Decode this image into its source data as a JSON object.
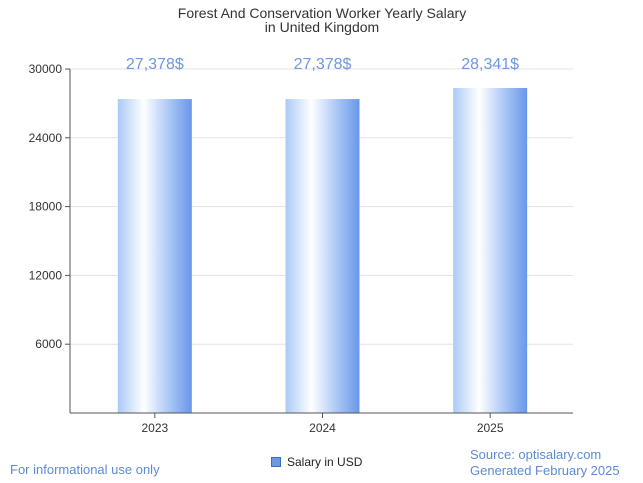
{
  "chart_data": {
    "type": "bar",
    "title_line1": "Forest And Conservation Worker Yearly Salary",
    "title_line2": "in United Kingdom",
    "categories": [
      "2023",
      "2024",
      "2025"
    ],
    "values": [
      27378,
      27378,
      28341
    ],
    "value_labels": [
      "27,378$",
      "27,378$",
      "28,341$"
    ],
    "yticks": [
      6000,
      12000,
      18000,
      24000,
      30000
    ],
    "ylim": [
      0,
      30000
    ],
    "legend": "Salary in USD",
    "colors": {
      "bar_light": "#ffffff",
      "bar_mid": "#b9d6fb",
      "bar_dark": "#6a97ea",
      "label": "#6e98e0"
    }
  },
  "footer": {
    "disclaimer": "For informational use only",
    "source": "Source: optisalary.com",
    "generated": "Generated February 2025"
  }
}
